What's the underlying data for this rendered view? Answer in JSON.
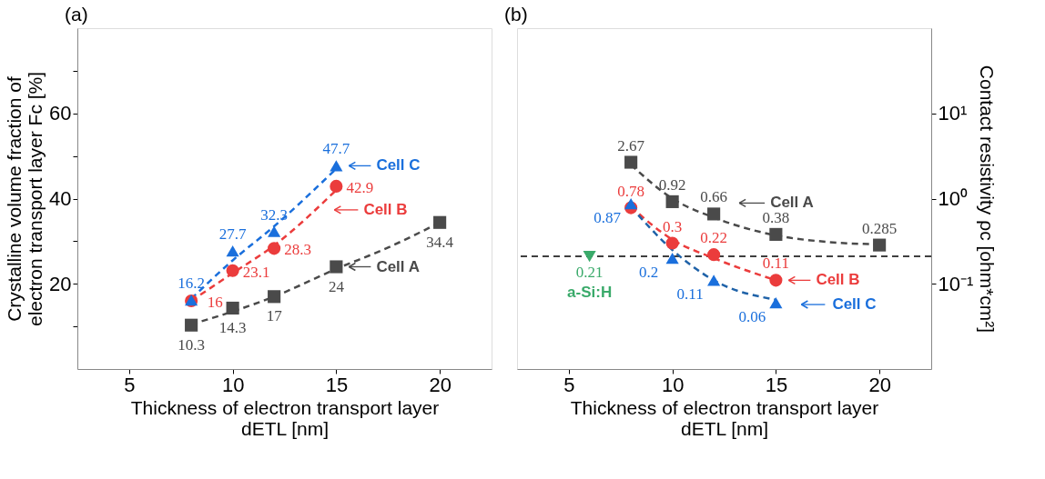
{
  "chart_data": [
    {
      "type": "scatter",
      "title": "(a)",
      "xlabel": "Thickness of electron transport layer\ndETL [nm]",
      "ylabel": "Crystalline volume fraction of\nelectron transport layer Fc [%]",
      "xlim": [
        2.5,
        22.5
      ],
      "ylim": [
        0,
        80
      ],
      "xticks": [
        5,
        10,
        15,
        20
      ],
      "yticks": [
        {
          "value": 10,
          "label": null
        },
        20,
        {
          "value": 30,
          "label": null
        },
        40,
        {
          "value": 50,
          "label": null
        },
        60,
        {
          "value": 70,
          "label": null
        }
      ],
      "legend": "right",
      "grid": false,
      "series": [
        {
          "type": "line",
          "color": "#4a4a4a",
          "line_style": "dashed",
          "marker": "none",
          "x": [
            8,
            10,
            12,
            15,
            17.5,
            20
          ],
          "values": [
            10.5,
            13.5,
            17,
            23.5,
            28.5,
            34.4
          ]
        },
        {
          "type": "line",
          "color": "#eb3c3c",
          "line_style": "dashed",
          "marker": "none",
          "x": [
            8,
            10,
            12,
            15
          ],
          "values": [
            16,
            22.5,
            29,
            42
          ]
        },
        {
          "type": "line",
          "color": "#1a6fdc",
          "line_style": "dashed",
          "marker": "none",
          "x": [
            8,
            10,
            12,
            15
          ],
          "values": [
            16.5,
            25.5,
            33.5,
            47
          ]
        },
        {
          "name": "Cell A",
          "color": "#4a4a4a",
          "marker": "square",
          "x": [
            8,
            10,
            12,
            15,
            20
          ],
          "values": [
            10.3,
            14.3,
            17,
            24,
            34.4
          ],
          "value_labels": [
            "10.3",
            "14.3",
            "17",
            "24",
            "34.4"
          ]
        },
        {
          "name": "Cell B",
          "color": "#eb3c3c",
          "marker": "circle",
          "x": [
            8,
            10,
            12,
            15
          ],
          "values": [
            16,
            23.1,
            28.3,
            42.9
          ],
          "value_labels": [
            "16",
            "23.1",
            "28.3",
            "42.9"
          ]
        },
        {
          "name": "Cell C",
          "color": "#1a6fdc",
          "marker": "triangle",
          "x": [
            8,
            10,
            12,
            15
          ],
          "values": [
            16.2,
            27.7,
            32.3,
            47.7
          ],
          "value_labels": [
            "16.2",
            "27.7",
            "32.3",
            "47.7"
          ]
        }
      ]
    },
    {
      "type": "scatter",
      "title": "(b)",
      "xlabel": "Thickness of electron transport layer\ndETL [nm]",
      "y2label": "Contact resistivity ρc [ohm*cm²]",
      "xlim": [
        2.5,
        22.5
      ],
      "y2lim": [
        0.01,
        100
      ],
      "xticks": [
        5,
        10,
        15,
        20
      ],
      "y2ticks": [
        {
          "value": 0.1,
          "label": "10⁻¹"
        },
        {
          "value": 1,
          "label": "10⁰"
        },
        {
          "value": 10,
          "label": "10¹"
        }
      ],
      "log": "y2",
      "legend": "right",
      "grid": false,
      "ref_lines": [
        {
          "axis": "y2",
          "value": 0.21,
          "color": "#000000",
          "line_style": "dashed"
        }
      ],
      "series": [
        {
          "type": "line",
          "axis": "y2",
          "color": "#4a4a4a",
          "line_style": "dashed",
          "marker": "none",
          "x": [
            8,
            10,
            12,
            15,
            17.5,
            20
          ],
          "values": [
            2.5,
            1.0,
            0.6,
            0.37,
            0.31,
            0.29
          ]
        },
        {
          "type": "line",
          "axis": "y2",
          "color": "#eb3c3c",
          "line_style": "dashed",
          "marker": "none",
          "x": [
            8,
            10,
            12,
            15
          ],
          "values": [
            0.8,
            0.33,
            0.2,
            0.11
          ]
        },
        {
          "type": "line",
          "axis": "y2",
          "color": "#1f62a8",
          "line_style": "dashed",
          "marker": "none",
          "x": [
            8,
            10,
            12,
            15
          ],
          "values": [
            0.8,
            0.25,
            0.11,
            0.065
          ]
        },
        {
          "name": "Cell A",
          "axis": "y2",
          "color": "#4a4a4a",
          "marker": "square",
          "x": [
            8,
            10,
            12,
            15,
            20
          ],
          "values": [
            2.67,
            0.92,
            0.66,
            0.38,
            0.285
          ],
          "value_labels": [
            "2.67",
            "0.92",
            "0.66",
            "0.38",
            "0.285"
          ]
        },
        {
          "name": "Cell B",
          "axis": "y2",
          "color": "#eb3c3c",
          "marker": "circle",
          "x": [
            8,
            10,
            12,
            15
          ],
          "values": [
            0.78,
            0.3,
            0.22,
            0.11
          ],
          "value_labels": [
            "0.78",
            "0.3",
            "0.22",
            "0.11"
          ]
        },
        {
          "name": "Cell C",
          "axis": "y2",
          "color": "#1a6fdc",
          "marker": "triangle",
          "x": [
            8,
            10,
            12,
            15
          ],
          "values": [
            0.87,
            0.2,
            0.11,
            0.06
          ],
          "value_labels": [
            "0.87",
            "0.2",
            "0.11",
            "0.06"
          ]
        },
        {
          "name": "a-Si:H",
          "axis": "y2",
          "color": "#3aaa6a",
          "marker": "triangle-down",
          "x": [
            6
          ],
          "values": [
            0.21
          ],
          "value_labels": [
            "0.21"
          ]
        }
      ]
    }
  ]
}
